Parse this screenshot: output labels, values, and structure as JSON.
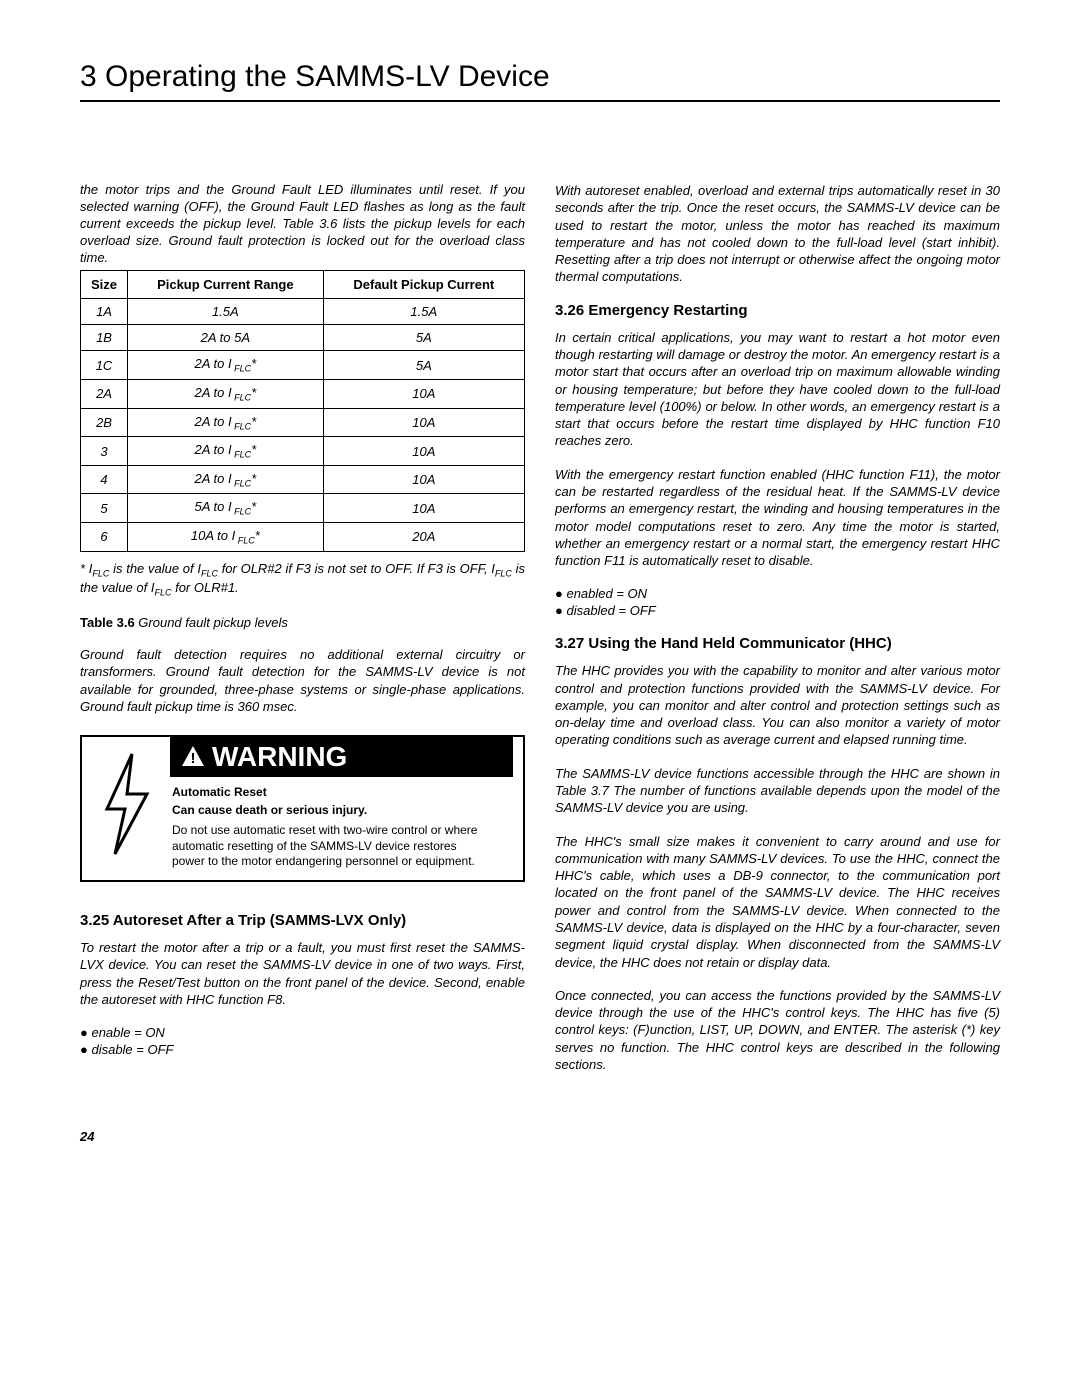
{
  "page_title": "3 Operating the SAMMS-LV Device",
  "left_intro": "the motor trips and the Ground Fault LED illuminates until reset. If you selected warning (OFF), the Ground Fault LED flashes as long as the fault current exceeds the pickup level. Table 3.6 lists the pickup levels for each overload size. Ground fault protection is locked out for the overload class time.",
  "table": {
    "headers": [
      "Size",
      "Pickup Current Range",
      "Default Pickup Current"
    ],
    "rows": [
      [
        "1A",
        "1.5A",
        "1.5A"
      ],
      [
        "1B",
        "2A to 5A",
        "5A"
      ],
      [
        "1C",
        "2A to I",
        "5A"
      ],
      [
        "2A",
        "2A to I",
        "10A"
      ],
      [
        "2B",
        "2A to I",
        "10A"
      ],
      [
        "3",
        "2A to I",
        "10A"
      ],
      [
        "4",
        "2A to I",
        "10A"
      ],
      [
        "5",
        "5A to I",
        "10A"
      ],
      [
        "6",
        "10A to I",
        "20A"
      ]
    ],
    "flc_suffix_from_row": 2
  },
  "table_footnote_pre": "* I",
  "table_footnote_mid1": " is the value of I",
  "table_footnote_mid2": " for OLR#2 if F3 is not set to OFF. If F3 is OFF, I",
  "table_footnote_mid3": " is the value of I",
  "table_footnote_end": " for OLR#1.",
  "table_caption_bold": "Table 3.6",
  "table_caption_ital": " Ground fault pickup levels",
  "left_body1": "Ground fault detection requires no additional external circuitry or transformers. Ground fault detection for the SAMMS-LV device is not available for grounded, three-phase systems or single-phase applications. Ground fault pickup time is 360 msec.",
  "warning": {
    "header": "WARNING",
    "title": "Automatic Reset",
    "sub": "Can cause death or serious injury.",
    "body": "Do not use automatic reset with two-wire control or where automatic resetting of the SAMMS-LV device restores power to the motor endangering personnel or equipment."
  },
  "section325_heading": "3.25 Autoreset After a Trip (SAMMS-LVX Only)",
  "section325_body": "To restart the motor after a trip or a fault, you must first reset the SAMMS-LVX device. You can reset the SAMMS-LV device in one of two ways. First, press the Reset/Test button on the front panel of the device. Second, enable the autoreset with HHC function F8.",
  "section325_bullets": [
    "enable = ON",
    "disable = OFF"
  ],
  "right_intro": "With autoreset enabled, overload and external trips automatically reset in 30 seconds after the trip. Once the reset occurs, the SAMMS-LV device can be used to restart the motor, unless the motor has reached its maximum temperature and has not cooled down to the full-load level (start inhibit). Resetting after a trip does not interrupt or otherwise affect the ongoing motor thermal computations.",
  "section326_heading": "3.26 Emergency Restarting",
  "section326_body1": "In certain critical applications, you may want to restart a hot motor even though restarting will damage or destroy the motor. An emergency restart is a motor start that occurs after an overload trip on maximum allowable winding or housing temperature; but before they have cooled down to the full-load temperature level (100%) or below. In other words, an emergency restart is a start that occurs before the restart time displayed by HHC function F10 reaches zero.",
  "section326_body2": "With the emergency restart function enabled (HHC function F11), the motor can be restarted regardless of the residual heat. If the SAMMS-LV device performs an emergency restart, the winding and housing temperatures in the motor model computations reset to zero. Any time the motor is started, whether an emergency restart or a normal start, the emergency restart HHC function F11 is automatically reset to disable.",
  "section326_bullets": [
    "enabled = ON",
    "disabled = OFF"
  ],
  "section327_heading": "3.27 Using the Hand Held Communicator (HHC)",
  "section327_body1": "The HHC provides you with the capability to monitor and alter various motor control and protection functions provided with the SAMMS-LV device. For example, you can monitor and alter control and protection settings such as on-delay time and overload class. You can also monitor a variety of motor operating conditions such as average current and elapsed running time.",
  "section327_body2": "The SAMMS-LV device functions accessible through the HHC are shown in Table 3.7 The number of functions available depends upon the model of the SAMMS-LV device you are using.",
  "section327_body3": "The HHC's small size makes it convenient to carry around and use for communication with many SAMMS-LV devices. To use the HHC, connect the HHC's cable, which uses a DB-9 connector, to the communication port located on the front panel of the SAMMS-LV device. The HHC receives power and control from the SAMMS-LV device. When connected to the SAMMS-LV device, data is displayed on the HHC by a four-character, seven segment liquid crystal display. When disconnected from the SAMMS-LV device, the HHC does not retain or display data.",
  "section327_body4": "Once connected, you can access the functions provided by the SAMMS-LV device through the use of the HHC's control keys. The HHC has five (5) control keys: (F)unction, LIST, UP, DOWN, and ENTER. The asterisk (*) key serves no function. The HHC control keys are described in the following sections.",
  "page_number": "24"
}
